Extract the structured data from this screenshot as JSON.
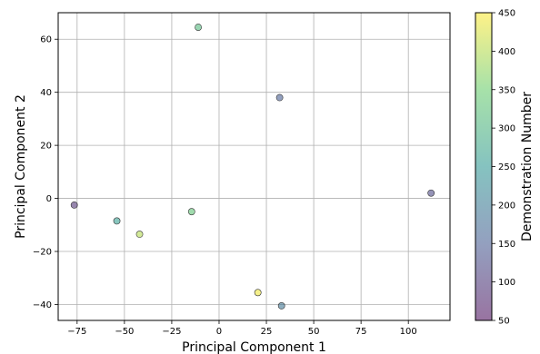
{
  "chart_data": {
    "type": "scatter",
    "title": "",
    "xlabel": "Principal Component 1",
    "ylabel": "Principal Component 2",
    "xlim": [
      -85,
      122
    ],
    "ylim": [
      -46,
      70
    ],
    "xticks": [
      -75,
      -50,
      -25,
      0,
      25,
      50,
      75,
      100
    ],
    "yticks": [
      -40,
      -20,
      0,
      20,
      40,
      60
    ],
    "grid": true,
    "colormap": "viridis",
    "colorbar": {
      "label": "Demonstration Number",
      "range": [
        50,
        450
      ],
      "ticks": [
        50,
        100,
        150,
        200,
        250,
        300,
        350,
        400,
        450
      ]
    },
    "points": [
      {
        "x": -76.5,
        "y": -2.5,
        "c": 90
      },
      {
        "x": -54,
        "y": -8.5,
        "c": 260
      },
      {
        "x": -42,
        "y": -13.5,
        "c": 400
      },
      {
        "x": -14.5,
        "y": -5,
        "c": 330
      },
      {
        "x": -11,
        "y": 64.5,
        "c": 310
      },
      {
        "x": 20.5,
        "y": -35.5,
        "c": 440
      },
      {
        "x": 32,
        "y": 38,
        "c": 150
      },
      {
        "x": 33,
        "y": -40.5,
        "c": 190
      },
      {
        "x": 112,
        "y": 2,
        "c": 120
      }
    ]
  }
}
